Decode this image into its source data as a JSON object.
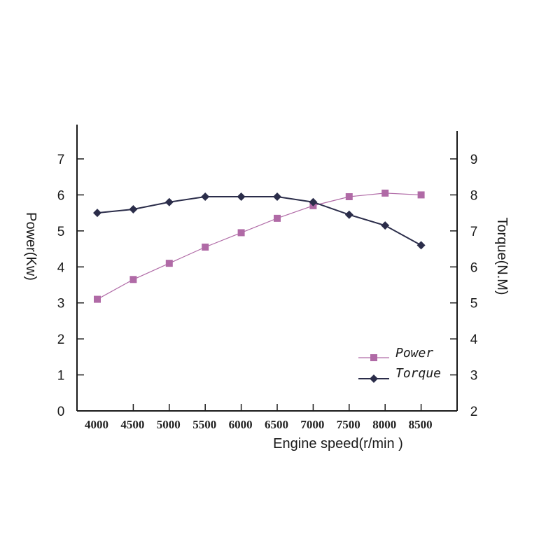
{
  "chart_data": {
    "type": "line",
    "xlabel": "Engine speed(r/min )",
    "ylabel_left": "Power(Kw)",
    "ylabel_right": "Torque(N.M)",
    "x": [
      4000,
      4500,
      5000,
      5500,
      6000,
      6500,
      7000,
      7500,
      8000,
      8500
    ],
    "x_tick_labels": [
      "4000",
      "4500",
      "5000",
      "5500",
      "6000",
      "6500",
      "7000",
      "7500",
      "8000",
      "8500"
    ],
    "ylim_left": [
      0,
      7
    ],
    "yticks_left": [
      "0",
      "1",
      "2",
      "3",
      "4",
      "5",
      "6",
      "7"
    ],
    "ylim_right": [
      2,
      9
    ],
    "yticks_right": [
      "2",
      "3",
      "4",
      "5",
      "6",
      "7",
      "8",
      "9"
    ],
    "series": [
      {
        "name": "Power",
        "axis": "left",
        "marker": "square",
        "color": "#b06aa6",
        "values": [
          3.1,
          3.65,
          4.1,
          4.55,
          4.95,
          5.35,
          5.7,
          5.95,
          6.05,
          6.0
        ]
      },
      {
        "name": "Torque",
        "axis": "right",
        "marker": "diamond",
        "color": "#2b2d4a",
        "values": [
          7.5,
          7.6,
          7.8,
          7.95,
          7.95,
          7.95,
          7.8,
          7.45,
          7.15,
          6.6
        ]
      }
    ],
    "legend": {
      "placement": "lower-right",
      "entries": [
        "Power",
        "Torque"
      ]
    },
    "grid": false
  }
}
